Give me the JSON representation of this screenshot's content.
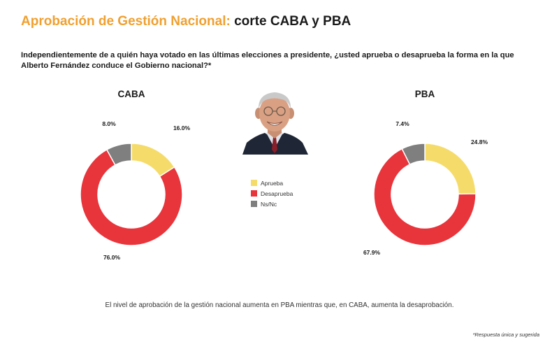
{
  "header": {
    "title_accent": "Aprobación de Gestión Nacional:",
    "title_rest": "corte CABA y PBA"
  },
  "question": "Independientemente de a quién haya votado en las últimas elecciones a presidente, ¿usted aprueba o desaprueba la forma en la que Alberto Fernández conduce el Gobierno nacional?*",
  "legend": {
    "items": [
      {
        "label": "Aprueba",
        "color": "#f5dc6a"
      },
      {
        "label": "Desaprueba",
        "color": "#e8343b"
      },
      {
        "label": "Ns/Nc",
        "color": "#7f7f7f"
      }
    ]
  },
  "chart_data": [
    {
      "type": "pie",
      "title": "CABA",
      "categories": [
        "Aprueba",
        "Desaprueba",
        "Ns/Nc"
      ],
      "values": [
        16.0,
        76.0,
        8.0
      ],
      "labels": [
        "16.0%",
        "76.0%",
        "8.0%"
      ],
      "colors": [
        "#f5dc6a",
        "#e8343b",
        "#7f7f7f"
      ]
    },
    {
      "type": "pie",
      "title": "PBA",
      "categories": [
        "Aprueba",
        "Desaprueba",
        "Ns/Nc"
      ],
      "values": [
        24.8,
        67.9,
        7.4
      ],
      "labels": [
        "24.8%",
        "67.9%",
        "7.4%"
      ],
      "colors": [
        "#f5dc6a",
        "#e8343b",
        "#7f7f7f"
      ]
    }
  ],
  "footer": "El nivel de aprobación de la gestión nacional aumenta en PBA mientras que, en CABA, aumenta la desaprobación.",
  "footnote": "*Respuesta única y sugerida"
}
